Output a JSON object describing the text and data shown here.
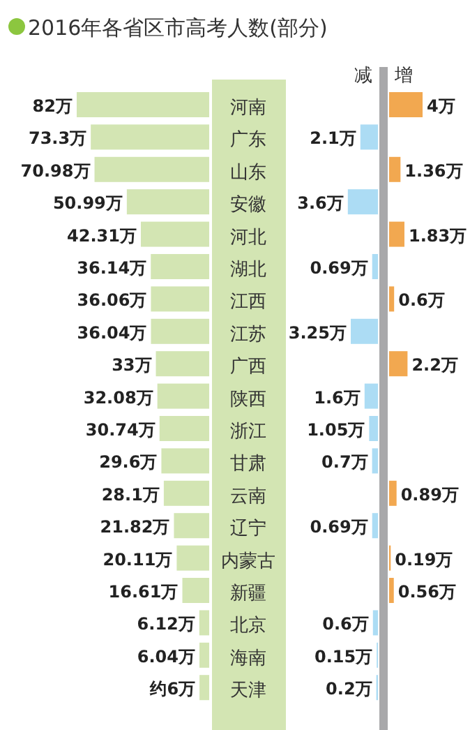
{
  "chart_data": [
    {
      "type": "bar",
      "orientation": "horizontal",
      "title": "2016年各省区市高考人数(部分)",
      "categories": [
        "河南",
        "广东",
        "山东",
        "安徽",
        "河北",
        "湖北",
        "江西",
        "江苏",
        "广西",
        "陕西",
        "浙江",
        "甘肃",
        "云南",
        "辽宁",
        "内蒙古",
        "新疆",
        "北京",
        "海南",
        "天津"
      ],
      "values": [
        82,
        73.3,
        70.98,
        50.99,
        42.31,
        36.14,
        36.06,
        36.04,
        33,
        32.08,
        30.74,
        29.6,
        28.1,
        21.82,
        20.11,
        16.61,
        6.12,
        6.04,
        6
      ],
      "value_labels": [
        "82万",
        "73.3万",
        "70.98万",
        "50.99万",
        "42.31万",
        "36.14万",
        "36.06万",
        "36.04万",
        "33万",
        "32.08万",
        "30.74万",
        "29.6万",
        "28.1万",
        "21.82万",
        "20.11万",
        "16.61万",
        "6.12万",
        "6.04万",
        "约6万"
      ],
      "color": "#d3e5b3"
    },
    {
      "type": "bar",
      "orientation": "horizontal",
      "xlabel": "减",
      "xlim": [
        4,
        0
      ],
      "categories": [
        null,
        null,
        null,
        null,
        null,
        null,
        null,
        null,
        null,
        null,
        null,
        null,
        null,
        null,
        null,
        null,
        null,
        null,
        null
      ],
      "values": [
        null,
        2.1,
        null,
        3.6,
        null,
        0.69,
        null,
        3.25,
        null,
        1.6,
        1.05,
        0.7,
        null,
        0.69,
        null,
        null,
        0.6,
        0.15,
        0.2
      ],
      "value_labels": [
        null,
        "2.1万",
        null,
        "3.6万",
        null,
        "0.69万",
        null,
        "3.25万",
        null,
        "1.6万",
        "1.05万",
        "0.7万",
        null,
        "0.69万",
        null,
        null,
        "0.6万",
        "0.15万",
        "0.2万"
      ],
      "color": "#acdcf4"
    },
    {
      "type": "bar",
      "orientation": "horizontal",
      "xlabel": "增",
      "xlim": [
        0,
        4
      ],
      "categories": [
        null,
        null,
        null,
        null,
        null,
        null,
        null,
        null,
        null,
        null,
        null,
        null,
        null,
        null,
        null,
        null,
        null,
        null,
        null
      ],
      "values": [
        4,
        null,
        1.36,
        null,
        1.83,
        null,
        0.6,
        null,
        2.2,
        null,
        null,
        null,
        0.89,
        null,
        0.19,
        0.56,
        null,
        null,
        null
      ],
      "value_labels": [
        "4万",
        null,
        "1.36万",
        null,
        "1.83万",
        null,
        "0.6万",
        null,
        "2.2万",
        null,
        null,
        null,
        "0.89万",
        null,
        "0.19万",
        "0.56万",
        null,
        null,
        null
      ],
      "color": "#f2a850"
    }
  ]
}
